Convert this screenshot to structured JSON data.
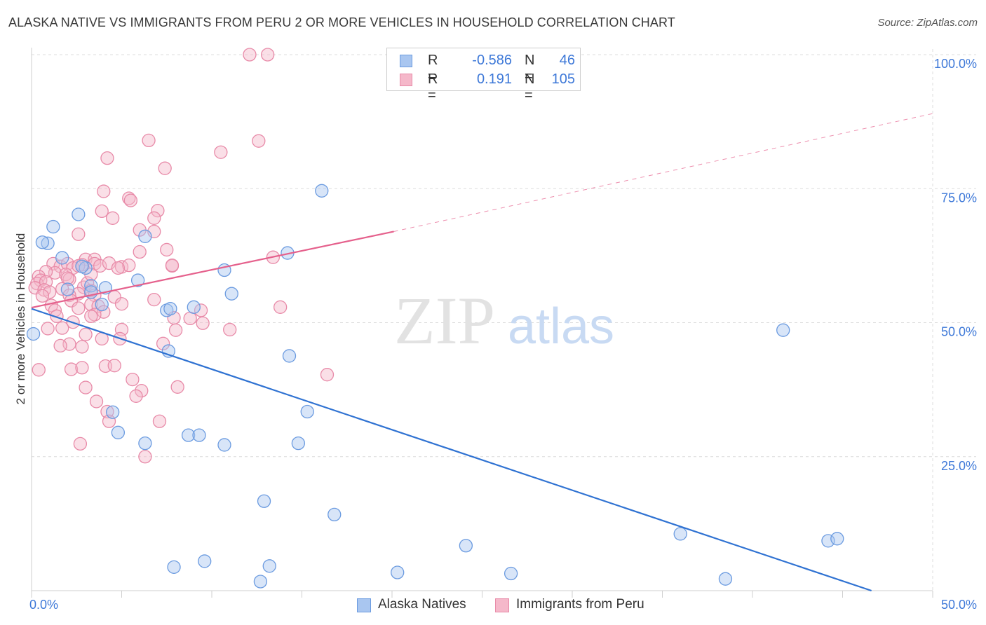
{
  "title": "ALASKA NATIVE VS IMMIGRANTS FROM PERU 2 OR MORE VEHICLES IN HOUSEHOLD CORRELATION CHART",
  "source": "Source: ZipAtlas.com",
  "watermark": {
    "zip": "ZIP",
    "atlas": "atlas"
  },
  "legend": {
    "rows": [
      {
        "r_label": "R =",
        "r_value": "-0.586",
        "n_label": "N =",
        "n_value": "46"
      },
      {
        "r_label": "R =",
        "r_value": "0.191",
        "n_label": "N =",
        "n_value": "105"
      }
    ]
  },
  "bottom_legend": [
    "Alaska Natives",
    "Immigrants from Peru"
  ],
  "colors": {
    "alaska_fill": "#a9c6f0",
    "alaska_stroke": "#6b9be0",
    "alaska_line": "#2f72d2",
    "peru_fill": "#f5b8ca",
    "peru_stroke": "#e88aa8",
    "peru_line": "#e5608c",
    "tick_label": "#3d78d8",
    "grid": "#dcdcdc"
  },
  "chart_data": {
    "type": "scatter",
    "title": "ALASKA NATIVE VS IMMIGRANTS FROM PERU 2 OR MORE VEHICLES IN HOUSEHOLD CORRELATION CHART",
    "xlabel": "",
    "ylabel": "2 or more Vehicles in Household",
    "xlim": [
      0,
      50
    ],
    "ylim": [
      0,
      100
    ],
    "x_tick_labels": [
      "0.0%",
      "50.0%"
    ],
    "y_ticks": [
      25,
      50,
      75,
      100
    ],
    "y_tick_labels": [
      "25.0%",
      "50.0%",
      "75.0%",
      "100.0%"
    ],
    "grid": true,
    "legend_position": "top-center",
    "series": [
      {
        "name": "Alaska Natives",
        "points": [
          [
            0.1,
            47.9
          ],
          [
            0.9,
            64.8
          ],
          [
            1.2,
            67.9
          ],
          [
            0.6,
            65.0
          ],
          [
            1.7,
            62.1
          ],
          [
            2.6,
            70.2
          ],
          [
            3.0,
            60.2
          ],
          [
            2.0,
            56.2
          ],
          [
            3.3,
            56.9
          ],
          [
            4.1,
            56.5
          ],
          [
            3.9,
            53.4
          ],
          [
            3.3,
            55.7
          ],
          [
            6.3,
            66.1
          ],
          [
            5.9,
            57.9
          ],
          [
            7.5,
            52.3
          ],
          [
            7.6,
            44.7
          ],
          [
            7.7,
            52.6
          ],
          [
            9.0,
            52.9
          ],
          [
            10.7,
            59.8
          ],
          [
            11.1,
            55.4
          ],
          [
            14.2,
            63.0
          ],
          [
            16.1,
            74.6
          ],
          [
            14.3,
            43.8
          ],
          [
            15.3,
            33.4
          ],
          [
            4.5,
            33.3
          ],
          [
            4.8,
            29.5
          ],
          [
            6.3,
            27.5
          ],
          [
            8.7,
            29.0
          ],
          [
            9.3,
            29.0
          ],
          [
            10.7,
            27.2
          ],
          [
            14.8,
            27.5
          ],
          [
            12.9,
            16.7
          ],
          [
            16.8,
            14.2
          ],
          [
            7.9,
            4.4
          ],
          [
            9.6,
            5.5
          ],
          [
            13.2,
            4.6
          ],
          [
            12.7,
            1.7
          ],
          [
            20.3,
            3.4
          ],
          [
            24.1,
            8.4
          ],
          [
            26.6,
            3.2
          ],
          [
            36.0,
            10.6
          ],
          [
            38.5,
            2.2
          ],
          [
            41.7,
            48.6
          ],
          [
            44.2,
            9.3
          ],
          [
            44.7,
            9.7
          ],
          [
            2.8,
            60.5
          ]
        ],
        "regression": {
          "x": [
            0,
            46.6
          ],
          "y": [
            52.6,
            0
          ]
        }
      },
      {
        "name": "Immigrants from Peru",
        "points": [
          [
            12.1,
            100
          ],
          [
            13.1,
            100
          ],
          [
            12.6,
            83.9
          ],
          [
            10.5,
            81.8
          ],
          [
            6.5,
            84.0
          ],
          [
            4.2,
            80.7
          ],
          [
            7.4,
            78.8
          ],
          [
            4.0,
            74.5
          ],
          [
            5.4,
            73.2
          ],
          [
            5.5,
            72.8
          ],
          [
            3.9,
            70.8
          ],
          [
            4.5,
            69.5
          ],
          [
            7.0,
            70.9
          ],
          [
            6.8,
            69.5
          ],
          [
            6.0,
            67.3
          ],
          [
            2.6,
            66.5
          ],
          [
            6.8,
            67.0
          ],
          [
            7.5,
            63.6
          ],
          [
            6.0,
            63.2
          ],
          [
            3.0,
            61.8
          ],
          [
            3.5,
            61.8
          ],
          [
            3.5,
            61.0
          ],
          [
            3.8,
            60.6
          ],
          [
            2.8,
            60.8
          ],
          [
            4.3,
            61.1
          ],
          [
            5.0,
            60.4
          ],
          [
            5.4,
            60.7
          ],
          [
            7.8,
            60.6
          ],
          [
            1.2,
            61.0
          ],
          [
            1.6,
            60.5
          ],
          [
            2.0,
            61.0
          ],
          [
            2.3,
            60.2
          ],
          [
            2.6,
            60.6
          ],
          [
            1.3,
            59.3
          ],
          [
            1.9,
            59.0
          ],
          [
            2.1,
            58.1
          ],
          [
            0.8,
            59.5
          ],
          [
            0.4,
            58.6
          ],
          [
            0.5,
            57.9
          ],
          [
            0.3,
            57.3
          ],
          [
            0.8,
            57.6
          ],
          [
            0.2,
            56.5
          ],
          [
            0.7,
            56.1
          ],
          [
            1.7,
            56.3
          ],
          [
            1.0,
            55.7
          ],
          [
            2.9,
            56.6
          ],
          [
            3.1,
            57.4
          ],
          [
            3.3,
            56.0
          ],
          [
            3.5,
            55.1
          ],
          [
            2.6,
            55.4
          ],
          [
            2.1,
            55.1
          ],
          [
            2.2,
            54.1
          ],
          [
            4.6,
            54.8
          ],
          [
            6.8,
            54.3
          ],
          [
            3.3,
            53.4
          ],
          [
            3.7,
            53.1
          ],
          [
            1.1,
            53.2
          ],
          [
            1.3,
            52.3
          ],
          [
            2.6,
            52.7
          ],
          [
            4.0,
            52.0
          ],
          [
            3.5,
            51.5
          ],
          [
            3.3,
            51.2
          ],
          [
            7.9,
            50.9
          ],
          [
            8.8,
            50.8
          ],
          [
            9.5,
            49.9
          ],
          [
            2.3,
            50.1
          ],
          [
            1.7,
            49.0
          ],
          [
            0.9,
            48.9
          ],
          [
            5.0,
            48.7
          ],
          [
            8.0,
            48.6
          ],
          [
            11.0,
            48.7
          ],
          [
            13.8,
            52.9
          ],
          [
            13.4,
            62.2
          ],
          [
            7.8,
            60.7
          ],
          [
            4.8,
            60.2
          ],
          [
            3.9,
            47.0
          ],
          [
            3.0,
            47.8
          ],
          [
            2.1,
            46.0
          ],
          [
            1.6,
            45.7
          ],
          [
            2.8,
            45.5
          ],
          [
            7.3,
            46.1
          ],
          [
            4.9,
            47.0
          ],
          [
            0.4,
            41.2
          ],
          [
            2.2,
            41.3
          ],
          [
            2.8,
            41.6
          ],
          [
            4.1,
            41.9
          ],
          [
            5.6,
            39.4
          ],
          [
            3.0,
            37.9
          ],
          [
            6.1,
            37.3
          ],
          [
            8.1,
            38.0
          ],
          [
            5.8,
            36.3
          ],
          [
            3.6,
            35.3
          ],
          [
            4.2,
            33.4
          ],
          [
            4.3,
            31.6
          ],
          [
            7.1,
            31.6
          ],
          [
            16.4,
            40.3
          ],
          [
            6.3,
            25.0
          ],
          [
            2.7,
            27.4
          ],
          [
            4.6,
            42.0
          ],
          [
            1.4,
            51.2
          ],
          [
            2.0,
            58.3
          ],
          [
            9.4,
            52.3
          ],
          [
            5.0,
            53.5
          ],
          [
            0.6,
            55.0
          ],
          [
            3.3,
            59.0
          ]
        ],
        "regression": {
          "x": [
            0,
            20.1
          ],
          "y": [
            52.8,
            67.0
          ],
          "extension": {
            "x": [
              20.1,
              50
            ],
            "y": [
              67.0,
              89.0
            ]
          }
        }
      }
    ]
  }
}
